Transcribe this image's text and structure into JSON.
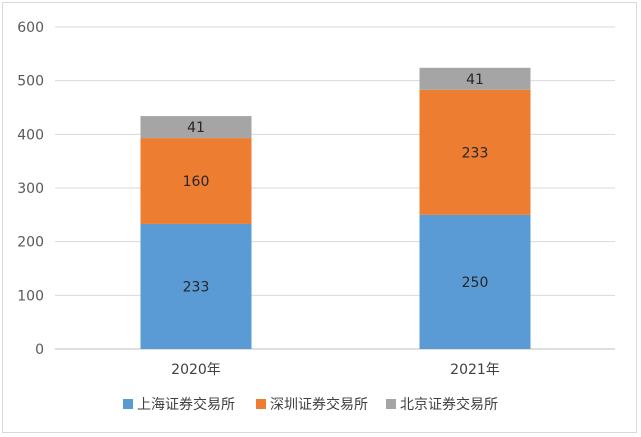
{
  "chart_data": {
    "type": "bar",
    "stacked": true,
    "title": "",
    "xlabel": "",
    "ylabel": "",
    "categories": [
      "2020年",
      "2021年"
    ],
    "series": [
      {
        "name": "上海证券交易所",
        "color": "#5b9bd5",
        "values": [
          233,
          250
        ]
      },
      {
        "name": "深圳证券交易所",
        "color": "#ed7d31",
        "values": [
          160,
          233
        ]
      },
      {
        "name": "北京证券交易所",
        "color": "#a5a5a5",
        "values": [
          41,
          41
        ]
      }
    ],
    "ylim": [
      0,
      600
    ],
    "yticks": [
      0,
      100,
      200,
      300,
      400,
      500,
      600
    ],
    "grid": true,
    "legend_position": "bottom"
  }
}
